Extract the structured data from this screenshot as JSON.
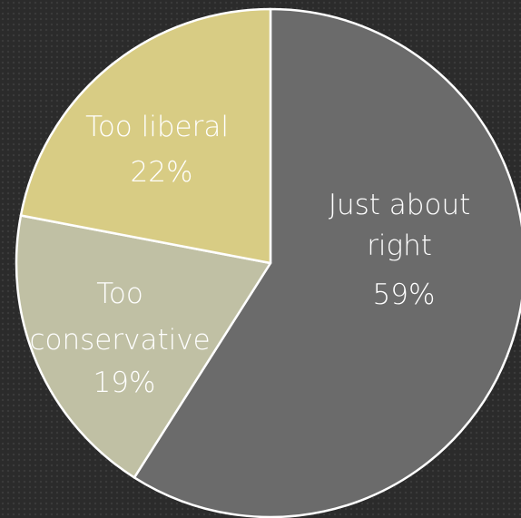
{
  "chart_data": {
    "type": "pie",
    "start_angle_deg": 0,
    "direction": "clockwise",
    "slices": [
      {
        "label_lines": [
          "Just about",
          "right"
        ],
        "percent_label": "59%",
        "value": 59,
        "color": "#6b6b6b"
      },
      {
        "label_lines": [
          "Too",
          "conservative"
        ],
        "percent_label": "19%",
        "value": 19,
        "color": "#c0c0a4"
      },
      {
        "label_lines": [
          "Too liberal"
        ],
        "percent_label": "22%",
        "value": 22,
        "color": "#d8cc84"
      }
    ]
  }
}
